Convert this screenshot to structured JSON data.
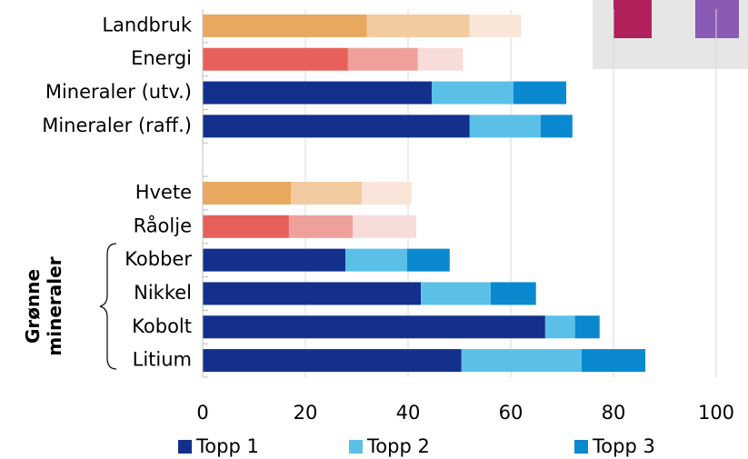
{
  "chart_data": {
    "type": "stacked-barh",
    "categories": [
      "Landbruk",
      "Energi",
      "Mineraler (utv.)",
      "Mineraler (raff.)",
      null,
      "Hvete",
      "Råolje",
      "Kobber",
      "Nikkel",
      "Kobolt",
      "Litium"
    ],
    "series": [
      {
        "name": "Topp 1",
        "color": "#13318c",
        "colors": [
          "#e8a860",
          "#e8605a",
          "#13318c",
          "#13318c",
          null,
          "#e8a860",
          "#e8605a",
          "#13318c",
          "#13318c",
          "#13318c",
          "#13318c"
        ],
        "values": [
          32,
          28.3,
          44.6,
          52,
          null,
          17.2,
          16.8,
          27.8,
          42.5,
          66.7,
          50.4
        ]
      },
      {
        "name": "Topp 2",
        "color": "#5bc0e8",
        "colors": [
          "#f2cba0",
          "#f0a09a",
          "#5bc0e8",
          "#5bc0e8",
          null,
          "#f2cba0",
          "#f0a09a",
          "#5bc0e8",
          "#5bc0e8",
          "#5bc0e8",
          "#5bc0e8"
        ],
        "values": [
          20,
          13.6,
          15.9,
          13.8,
          null,
          13.8,
          12.4,
          12,
          13.6,
          5.8,
          23.4
        ]
      },
      {
        "name": "Topp 3",
        "color": "#0a88d0",
        "colors": [
          "#fae6d8",
          "#f8dcda",
          "#0a88d0",
          "#0a88d0",
          null,
          "#fae6d8",
          "#f8dcda",
          "#0a88d0",
          "#0a88d0",
          "#0a88d0",
          "#0a88d0"
        ],
        "values": [
          10,
          8.8,
          10.3,
          6.2,
          null,
          9.7,
          12.4,
          8.3,
          8.8,
          4.8,
          12.4
        ]
      }
    ],
    "group_label": "Grønne mineraler",
    "xlim": [
      0,
      100
    ],
    "xticks": [
      0,
      20,
      40,
      60,
      80,
      100
    ],
    "grid": true,
    "legend": "bottom"
  }
}
